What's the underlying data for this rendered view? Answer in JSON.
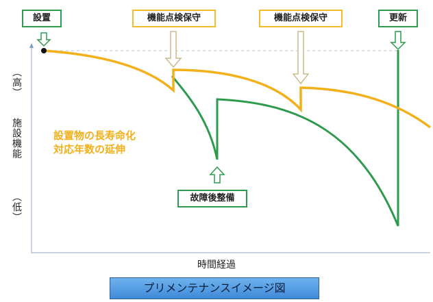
{
  "diagram": {
    "y_axis": {
      "label": "施設機能",
      "high": "（高）",
      "low": "（低）"
    },
    "x_axis": {
      "label": "時間経過"
    },
    "event_labels": {
      "install": "設置",
      "check1": "機能点検保守",
      "check2": "機能点検保守",
      "renew": "更新",
      "repair": "故障後整備"
    },
    "annotation": [
      "設置物の長寿命化",
      "対応年数の延伸"
    ],
    "caption": "プリメンテナンスイメージ図",
    "colors": {
      "preventive_curve": "#f2b01b",
      "breakdown_curve": "#2e9a4e",
      "axis": "#b8c4d4",
      "banner": "#4a96e0"
    }
  }
}
